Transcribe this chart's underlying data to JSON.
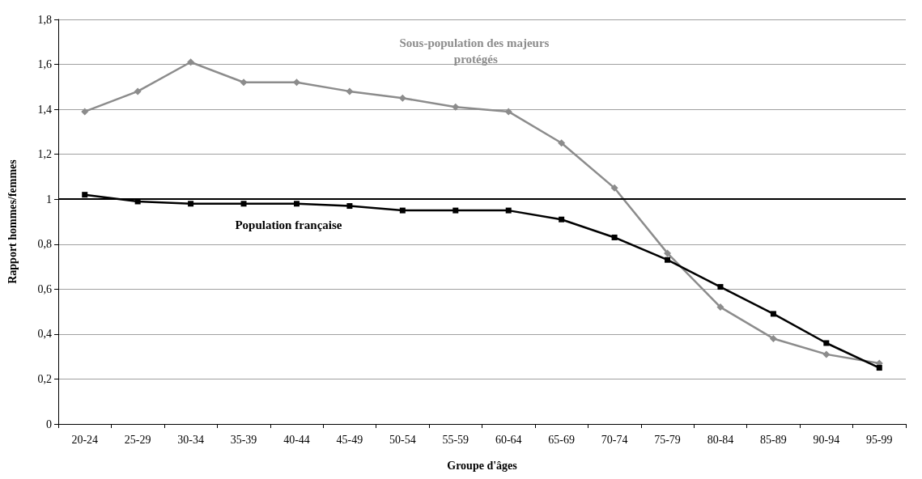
{
  "chart_data": {
    "type": "line",
    "xlabel": "Groupe d'âges",
    "ylabel": "Rapport hommes/femmes",
    "categories": [
      "20-24",
      "25-29",
      "30-34",
      "35-39",
      "40-44",
      "45-49",
      "50-54",
      "55-59",
      "60-64",
      "65-69",
      "70-74",
      "75-79",
      "80-84",
      "85-89",
      "90-94",
      "95-99"
    ],
    "series": [
      {
        "name": "Sous-population des majeurs protégés",
        "color": "#8c8c8c",
        "marker": "diamond",
        "values": [
          1.39,
          1.48,
          1.61,
          1.52,
          1.52,
          1.48,
          1.45,
          1.41,
          1.39,
          1.25,
          1.05,
          0.76,
          0.52,
          0.38,
          0.31,
          0.27
        ]
      },
      {
        "name": "Population française",
        "color": "#000000",
        "marker": "square",
        "values": [
          1.02,
          0.99,
          0.98,
          0.98,
          0.98,
          0.97,
          0.95,
          0.95,
          0.95,
          0.91,
          0.83,
          0.73,
          0.61,
          0.49,
          0.36,
          0.25
        ]
      }
    ],
    "ylim": [
      0,
      1.8
    ],
    "yticks": [
      {
        "value": 0,
        "label": "0"
      },
      {
        "value": 0.2,
        "label": "0,2"
      },
      {
        "value": 0.4,
        "label": "0,4"
      },
      {
        "value": 0.6,
        "label": "0,6"
      },
      {
        "value": 0.8,
        "label": "0,8"
      },
      {
        "value": 1,
        "label": "1"
      },
      {
        "value": 1.2,
        "label": "1,2"
      },
      {
        "value": 1.4,
        "label": "1,4"
      },
      {
        "value": 1.6,
        "label": "1,6"
      },
      {
        "value": 1.8,
        "label": "1,8"
      }
    ],
    "ref_lines": [
      {
        "axis": "y",
        "value": 1,
        "color": "#000000"
      }
    ],
    "grid": "y",
    "legend": false
  }
}
